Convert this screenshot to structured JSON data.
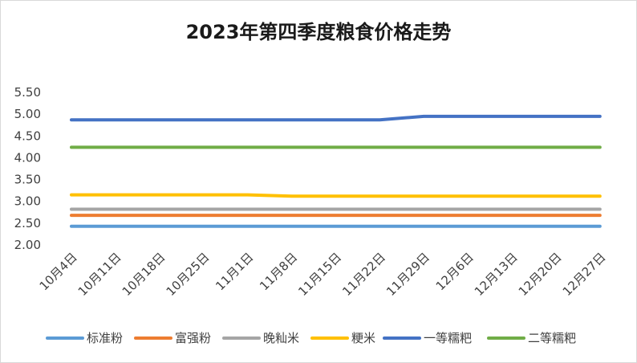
{
  "chart_data": {
    "type": "line",
    "title": "2023年第四季度粮食价格走势",
    "xlabel": "",
    "ylabel": "",
    "ylim": [
      2.0,
      5.5
    ],
    "yticks": [
      "2.00",
      "2.50",
      "3.00",
      "3.50",
      "4.00",
      "4.50",
      "5.00",
      "5.50"
    ],
    "grid": false,
    "legend_position": "bottom",
    "categories": [
      "10月4日",
      "10月11日",
      "10月18日",
      "10月25日",
      "11月1日",
      "11月8日",
      "11月15日",
      "11月22日",
      "11月29日",
      "12月6日",
      "12月13日",
      "12月20日",
      "12月27日"
    ],
    "series": [
      {
        "name": "标准粉",
        "color": "#5b9bd5",
        "values": [
          2.43,
          2.43,
          2.43,
          2.43,
          2.43,
          2.43,
          2.43,
          2.43,
          2.43,
          2.43,
          2.43,
          2.43,
          2.43
        ]
      },
      {
        "name": "富强粉",
        "color": "#ed7d31",
        "values": [
          2.68,
          2.68,
          2.68,
          2.68,
          2.68,
          2.68,
          2.68,
          2.68,
          2.68,
          2.68,
          2.68,
          2.68,
          2.68
        ]
      },
      {
        "name": "晚籼米",
        "color": "#a5a5a5",
        "values": [
          2.82,
          2.82,
          2.82,
          2.82,
          2.82,
          2.82,
          2.82,
          2.82,
          2.82,
          2.82,
          2.82,
          2.82,
          2.82
        ]
      },
      {
        "name": "粳米",
        "color": "#ffc000",
        "values": [
          3.15,
          3.15,
          3.15,
          3.15,
          3.15,
          3.12,
          3.12,
          3.12,
          3.12,
          3.12,
          3.12,
          3.12,
          3.12
        ]
      },
      {
        "name": "一等糯粑",
        "color": "#4472c4",
        "values": [
          4.87,
          4.87,
          4.87,
          4.87,
          4.87,
          4.87,
          4.87,
          4.87,
          4.95,
          4.95,
          4.95,
          4.95,
          4.95
        ]
      },
      {
        "name": "二等糯粑",
        "color": "#70ad47",
        "values": [
          4.24,
          4.24,
          4.24,
          4.24,
          4.24,
          4.24,
          4.24,
          4.24,
          4.24,
          4.24,
          4.24,
          4.24,
          4.24
        ]
      }
    ]
  }
}
